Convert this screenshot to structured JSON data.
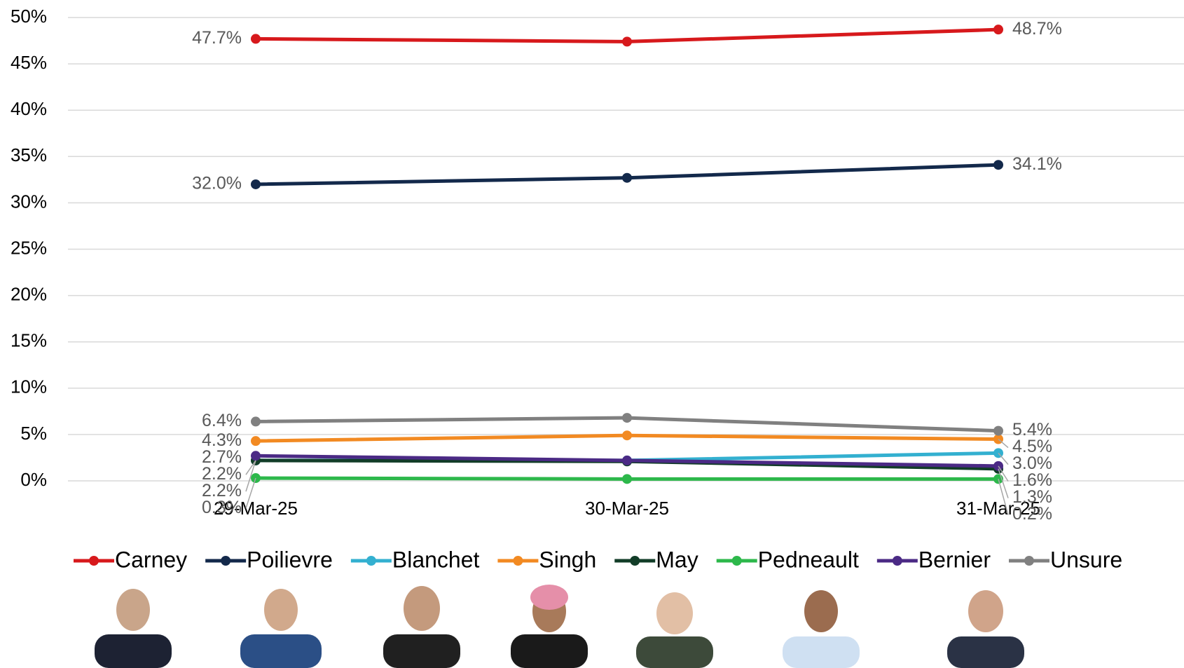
{
  "chart_data": {
    "type": "line",
    "categories": [
      "29-Mar-25",
      "30-Mar-25",
      "31-Mar-25"
    ],
    "ylim": [
      0,
      50
    ],
    "yticks": [
      {
        "value": 0,
        "label": "0%"
      },
      {
        "value": 5,
        "label": "5%"
      },
      {
        "value": 10,
        "label": "10%"
      },
      {
        "value": 15,
        "label": "15%"
      },
      {
        "value": 20,
        "label": "20%"
      },
      {
        "value": 25,
        "label": "25%"
      },
      {
        "value": 30,
        "label": "30%"
      },
      {
        "value": 35,
        "label": "35%"
      },
      {
        "value": 40,
        "label": "40%"
      },
      {
        "value": 45,
        "label": "45%"
      },
      {
        "value": 50,
        "label": "50%"
      }
    ],
    "grid": true,
    "legend": "bottom",
    "series": [
      {
        "name": "Carney",
        "color": "#d7191c",
        "values": [
          47.7,
          47.4,
          48.7
        ],
        "value_labels": [
          "47.7%",
          null,
          "48.7%"
        ]
      },
      {
        "name": "Poilievre",
        "color": "#13294b",
        "values": [
          32.0,
          32.7,
          34.1
        ],
        "value_labels": [
          "32.0%",
          null,
          "34.1%"
        ]
      },
      {
        "name": "Blanchet",
        "color": "#33b0d0",
        "values": [
          2.2,
          2.2,
          3.0
        ],
        "value_labels": [
          "2.2%",
          null,
          "3.0%"
        ]
      },
      {
        "name": "Singh",
        "color": "#f28a22",
        "values": [
          4.3,
          4.9,
          4.5
        ],
        "value_labels": [
          "4.3%",
          null,
          "4.5%"
        ]
      },
      {
        "name": "May",
        "color": "#123d28",
        "values": [
          2.2,
          2.1,
          1.3
        ],
        "value_labels": [
          "2.2%",
          null,
          "1.3%"
        ]
      },
      {
        "name": "Pedneault",
        "color": "#2db84b",
        "values": [
          0.3,
          0.2,
          0.2
        ],
        "value_labels": [
          "0.3%",
          null,
          "0.2%"
        ]
      },
      {
        "name": "Bernier",
        "color": "#4b2a85",
        "values": [
          2.7,
          2.2,
          1.6
        ],
        "value_labels": [
          "2.7%",
          null,
          "1.6%"
        ]
      },
      {
        "name": "Unsure",
        "color": "#808080",
        "values": [
          6.4,
          6.8,
          5.4
        ],
        "value_labels": [
          "6.4%",
          null,
          "5.4%"
        ]
      }
    ]
  }
}
